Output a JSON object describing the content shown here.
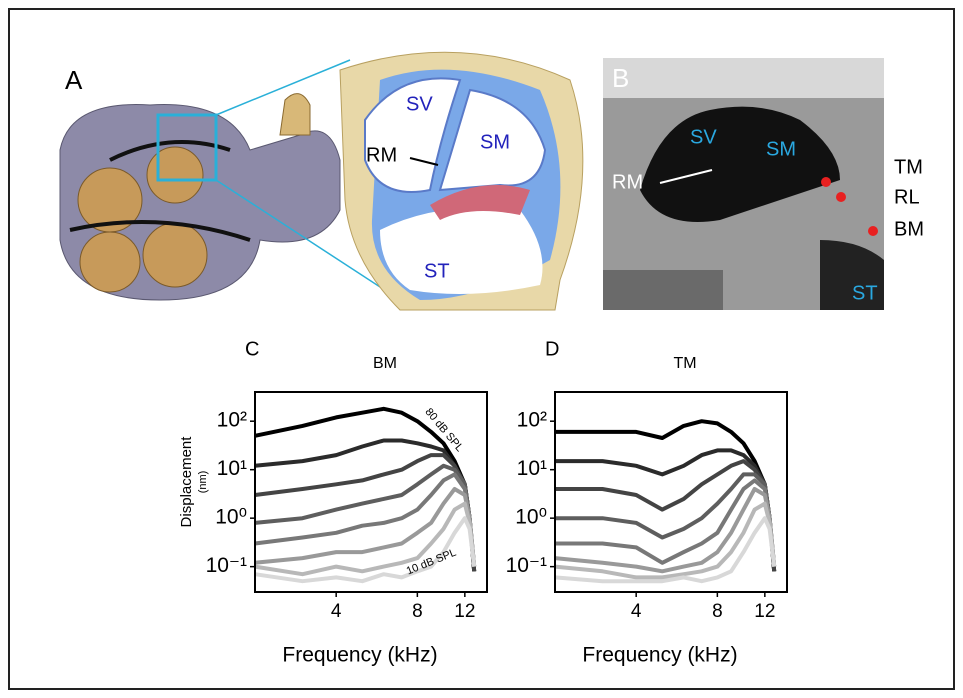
{
  "panels": {
    "A": {
      "label": "A",
      "sv": "SV",
      "sm": "SM",
      "rm": "RM",
      "st": "ST"
    },
    "B": {
      "label": "B",
      "sv": "SV",
      "sm": "SM",
      "rm": "RM",
      "st": "ST",
      "tm": "TM",
      "rl": "RL",
      "bm": "BM"
    }
  },
  "chart_data": [
    {
      "type": "line",
      "panel": "C",
      "title": "BM",
      "ylabel": "Displacement",
      "ylabel_unit": "(nm)",
      "xlabel": "Frequency (kHz)",
      "xscale": "log",
      "yscale": "log",
      "xlim": [
        2,
        14.5
      ],
      "ylim": [
        0.03,
        400
      ],
      "xticks": [
        4,
        8,
        12
      ],
      "yticks": [
        {
          "value": 0.1,
          "label": "10⁻¹"
        },
        {
          "value": 1,
          "label": "10⁰"
        },
        {
          "value": 10,
          "label": "10¹"
        },
        {
          "value": 100,
          "label": "10²"
        }
      ],
      "annotations": [
        "80 dB SPL",
        "10 dB SPL"
      ],
      "x": [
        2,
        3,
        4,
        5,
        6,
        7,
        8,
        9,
        10,
        11,
        12,
        12.5,
        13
      ],
      "series": [
        {
          "color": "#000000",
          "values": [
            50,
            80,
            120,
            150,
            180,
            150,
            100,
            60,
            35,
            15,
            5,
            1,
            0.08
          ]
        },
        {
          "color": "#2b2b2b",
          "values": [
            12,
            15,
            20,
            30,
            40,
            40,
            35,
            30,
            25,
            12,
            5,
            1,
            0.08
          ]
        },
        {
          "color": "#444444",
          "values": [
            3,
            4,
            5,
            6,
            8,
            10,
            15,
            20,
            20,
            12,
            5,
            1,
            0.08
          ]
        },
        {
          "color": "#5e5e5e",
          "values": [
            0.8,
            1,
            1.5,
            2,
            2.5,
            3,
            5,
            8,
            12,
            10,
            5,
            1,
            0.1
          ]
        },
        {
          "color": "#787878",
          "values": [
            0.3,
            0.4,
            0.5,
            0.7,
            0.8,
            1,
            1.5,
            3,
            6,
            8,
            4,
            1,
            0.1
          ]
        },
        {
          "color": "#999999",
          "values": [
            0.12,
            0.15,
            0.2,
            0.2,
            0.25,
            0.3,
            0.5,
            0.8,
            2,
            4,
            3,
            1,
            0.1
          ]
        },
        {
          "color": "#b8b8b8",
          "values": [
            0.1,
            0.07,
            0.1,
            0.08,
            0.1,
            0.12,
            0.15,
            0.3,
            0.6,
            1.5,
            2,
            0.8,
            0.1
          ]
        },
        {
          "color": "#d8d8d8",
          "values": [
            0.07,
            0.05,
            0.06,
            0.05,
            0.07,
            0.06,
            0.08,
            0.1,
            0.2,
            0.5,
            1,
            0.6,
            0.1
          ]
        }
      ]
    },
    {
      "type": "line",
      "panel": "D",
      "title": "TM",
      "xlabel": "Frequency (kHz)",
      "xscale": "log",
      "yscale": "log",
      "xlim": [
        2,
        14.5
      ],
      "ylim": [
        0.03,
        400
      ],
      "xticks": [
        4,
        8,
        12
      ],
      "yticks": [
        {
          "value": 0.1,
          "label": "10⁻¹"
        },
        {
          "value": 1,
          "label": "10⁰"
        },
        {
          "value": 10,
          "label": "10¹"
        },
        {
          "value": 100,
          "label": "10²"
        }
      ],
      "x": [
        2,
        3,
        4,
        5,
        6,
        7,
        8,
        9,
        10,
        11,
        12,
        12.5,
        13
      ],
      "series": [
        {
          "color": "#000000",
          "values": [
            60,
            60,
            60,
            45,
            80,
            100,
            90,
            60,
            35,
            15,
            5,
            1,
            0.08
          ]
        },
        {
          "color": "#2b2b2b",
          "values": [
            15,
            15,
            12,
            8,
            12,
            20,
            25,
            25,
            20,
            12,
            5,
            1,
            0.08
          ]
        },
        {
          "color": "#444444",
          "values": [
            4,
            4,
            3,
            1.5,
            2.5,
            5,
            8,
            12,
            15,
            10,
            5,
            1,
            0.08
          ]
        },
        {
          "color": "#5e5e5e",
          "values": [
            1,
            1,
            0.8,
            0.4,
            0.6,
            1,
            2,
            4,
            8,
            8,
            5,
            1,
            0.1
          ]
        },
        {
          "color": "#787878",
          "values": [
            0.3,
            0.3,
            0.25,
            0.12,
            0.2,
            0.3,
            0.5,
            1.5,
            4,
            6,
            4,
            1,
            0.1
          ]
        },
        {
          "color": "#999999",
          "values": [
            0.15,
            0.12,
            0.1,
            0.08,
            0.1,
            0.12,
            0.2,
            0.5,
            1.5,
            4,
            3,
            1,
            0.1
          ]
        },
        {
          "color": "#b8b8b8",
          "values": [
            0.1,
            0.08,
            0.06,
            0.06,
            0.07,
            0.08,
            0.1,
            0.2,
            0.5,
            1.5,
            2,
            0.8,
            0.1
          ]
        },
        {
          "color": "#d8d8d8",
          "values": [
            0.06,
            0.05,
            0.05,
            0.05,
            0.06,
            0.05,
            0.06,
            0.08,
            0.2,
            0.5,
            1,
            0.6,
            0.1
          ]
        }
      ]
    }
  ]
}
